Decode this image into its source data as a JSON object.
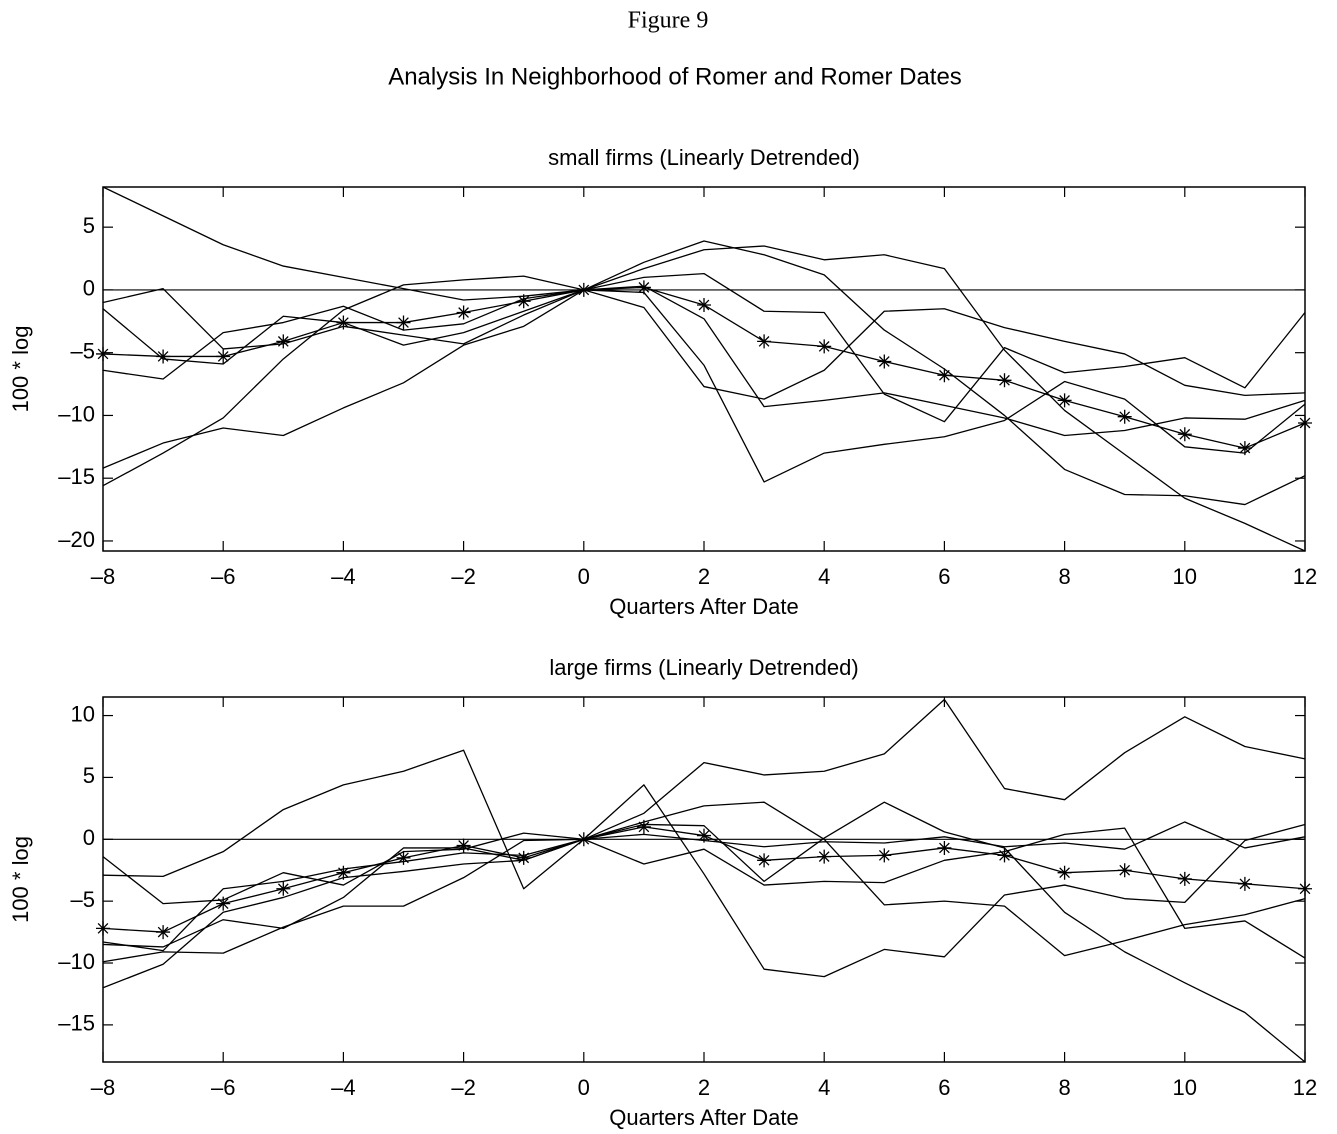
{
  "figure_label": "Figure 9",
  "title": "Analysis In Neighborhood of Romer and Romer Dates",
  "chart_data": [
    {
      "type": "line",
      "title": "small firms (Linearly Detrended)",
      "xlabel": "Quarters After Date",
      "ylabel": "100 * log",
      "x": [
        -8,
        -7,
        -6,
        -5,
        -4,
        -3,
        -2,
        -1,
        0,
        1,
        2,
        3,
        4,
        5,
        6,
        7,
        8,
        9,
        10,
        11,
        12
      ],
      "xlim": [
        -8,
        12
      ],
      "ylim": [
        -20.8,
        8.2
      ],
      "xticks": [
        {
          "value": -8,
          "label": "–8"
        },
        {
          "value": -6,
          "label": "–6"
        },
        {
          "value": -4,
          "label": "–4"
        },
        {
          "value": -2,
          "label": "–2"
        },
        0,
        2,
        4,
        6,
        8,
        10,
        12
      ],
      "yticks": [
        {
          "value": -20,
          "label": "–20"
        },
        {
          "value": -15,
          "label": "–15"
        },
        {
          "value": -10,
          "label": "–10"
        },
        {
          "value": -5,
          "label": "–5"
        },
        0,
        5
      ],
      "hline": 0,
      "series": [
        {
          "color": "#000000",
          "values": [
            8.2,
            5.9,
            3.6,
            1.9,
            1.0,
            0.1,
            -0.8,
            -0.5,
            0,
            1.0,
            1.3,
            -1.7,
            -1.8,
            -8.3,
            -10.5,
            -4.6,
            -6.6,
            -6.1,
            -5.4,
            -7.8,
            -1.8
          ]
        },
        {
          "color": "#000000",
          "values": [
            -1.0,
            0.1,
            -4.7,
            -4.3,
            -2.9,
            -3.6,
            -4.3,
            -2.0,
            0,
            2.2,
            3.9,
            2.8,
            1.2,
            -3.2,
            -6.3,
            -10.0,
            -14.3,
            -16.3,
            -16.4,
            -17.1,
            -14.8
          ]
        },
        {
          "color": "#000000",
          "values": [
            -1.5,
            -5.5,
            -5.9,
            -2.1,
            -2.6,
            -4.4,
            -3.4,
            -1.7,
            0,
            1.7,
            3.2,
            3.5,
            2.4,
            2.8,
            1.7,
            -4.8,
            -9.6,
            -13.1,
            -16.6,
            -18.6,
            -20.8
          ]
        },
        {
          "color": "#000000",
          "values": [
            -6.4,
            -7.1,
            -3.4,
            -2.6,
            -1.3,
            -3.2,
            -2.7,
            -0.7,
            0,
            -0.2,
            -6.0,
            -15.3,
            -13.0,
            -12.3,
            -11.7,
            -10.4,
            -7.3,
            -8.7,
            -12.5,
            -13.0,
            -9.1
          ]
        },
        {
          "color": "#000000",
          "values": [
            -14.2,
            -12.2,
            -11.0,
            -11.6,
            -9.4,
            -7.4,
            -4.4,
            -2.9,
            0,
            0.3,
            -2.3,
            -9.3,
            -8.8,
            -8.2,
            -9.2,
            -10.2,
            -11.6,
            -11.2,
            -10.2,
            -10.3,
            -8.8
          ]
        },
        {
          "color": "#000000",
          "values": [
            -15.6,
            -13.0,
            -10.2,
            -5.5,
            -1.6,
            0.4,
            0.8,
            1.1,
            0,
            -1.4,
            -7.7,
            -8.7,
            -6.4,
            -1.7,
            -1.5,
            -3.0,
            -4.1,
            -5.1,
            -7.6,
            -8.4,
            -8.2
          ]
        },
        {
          "color": "#000000",
          "marker": "asterisk",
          "values": [
            -5.1,
            -5.3,
            -5.3,
            -4.1,
            -2.6,
            -2.6,
            -1.8,
            -0.9,
            0,
            0.2,
            -1.2,
            -4.1,
            -4.5,
            -5.7,
            -6.8,
            -7.2,
            -8.8,
            -10.1,
            -11.5,
            -12.6,
            -10.6
          ]
        }
      ]
    },
    {
      "type": "line",
      "title": "large firms (Linearly Detrended)",
      "xlabel": "Quarters After Date",
      "ylabel": "100 * log",
      "x": [
        -8,
        -7,
        -6,
        -5,
        -4,
        -3,
        -2,
        -1,
        0,
        1,
        2,
        3,
        4,
        5,
        6,
        7,
        8,
        9,
        10,
        11,
        12
      ],
      "xlim": [
        -8,
        12
      ],
      "ylim": [
        -18,
        11.5
      ],
      "xticks": [
        {
          "value": -8,
          "label": "–8"
        },
        {
          "value": -6,
          "label": "–6"
        },
        {
          "value": -4,
          "label": "–4"
        },
        {
          "value": -2,
          "label": "–2"
        },
        0,
        2,
        4,
        6,
        8,
        10,
        12
      ],
      "yticks": [
        {
          "value": -15,
          "label": "–15"
        },
        {
          "value": -10,
          "label": "–10"
        },
        {
          "value": -5,
          "label": "–5"
        },
        0,
        5,
        10
      ],
      "hline": 0,
      "series": [
        {
          "color": "#000000",
          "values": [
            -2.9,
            -3.0,
            -1.0,
            2.4,
            4.4,
            5.5,
            7.2,
            -4.0,
            0,
            2.1,
            6.2,
            5.2,
            5.5,
            6.9,
            11.3,
            4.1,
            3.2,
            7.0,
            9.9,
            7.5,
            6.5
          ]
        },
        {
          "color": "#000000",
          "values": [
            -1.4,
            -5.2,
            -4.9,
            -2.7,
            -3.7,
            -1.0,
            -0.8,
            0.5,
            0,
            4.4,
            -2.8,
            -10.5,
            -11.1,
            -8.9,
            -9.5,
            -4.5,
            -3.7,
            -4.8,
            -5.1,
            -0.1,
            1.2
          ]
        },
        {
          "color": "#000000",
          "values": [
            -8.5,
            -8.7,
            -6.5,
            -7.2,
            -4.7,
            -0.7,
            -0.7,
            -1.7,
            0,
            1.4,
            2.7,
            3.0,
            0,
            -5.3,
            -5.0,
            -5.4,
            -9.4,
            -8.2,
            -6.9,
            -6.1,
            -4.8
          ]
        },
        {
          "color": "#000000",
          "values": [
            -9.9,
            -9.1,
            -9.2,
            -7.1,
            -5.4,
            -5.4,
            -3.1,
            -0.1,
            0,
            -2.0,
            -0.8,
            -3.7,
            -3.4,
            -3.5,
            -1.7,
            -1.0,
            0.4,
            0.9,
            -7.2,
            -6.6,
            -9.6
          ]
        },
        {
          "color": "#000000",
          "values": [
            -12.0,
            -10.1,
            -5.9,
            -4.7,
            -3.1,
            -2.6,
            -2.0,
            -1.7,
            0,
            1.2,
            1.1,
            -3.4,
            0.1,
            3.0,
            0.6,
            -0.7,
            -5.9,
            -9.1,
            -11.6,
            -14.0,
            -18.0
          ]
        },
        {
          "color": "#000000",
          "values": [
            -8.3,
            -9.0,
            -4.0,
            -3.4,
            -2.4,
            -1.8,
            -1.1,
            -1.3,
            0,
            0.4,
            -0.1,
            -0.6,
            -0.2,
            -0.3,
            0.2,
            -0.6,
            -0.3,
            -0.8,
            1.4,
            -0.7,
            0.2
          ]
        },
        {
          "color": "#000000",
          "marker": "asterisk",
          "values": [
            -7.2,
            -7.5,
            -5.2,
            -4.0,
            -2.7,
            -1.5,
            -0.5,
            -1.5,
            0,
            1.0,
            0.3,
            -1.7,
            -1.4,
            -1.3,
            -0.7,
            -1.3,
            -2.7,
            -2.5,
            -3.2,
            -3.6,
            -4.0
          ]
        }
      ]
    }
  ]
}
